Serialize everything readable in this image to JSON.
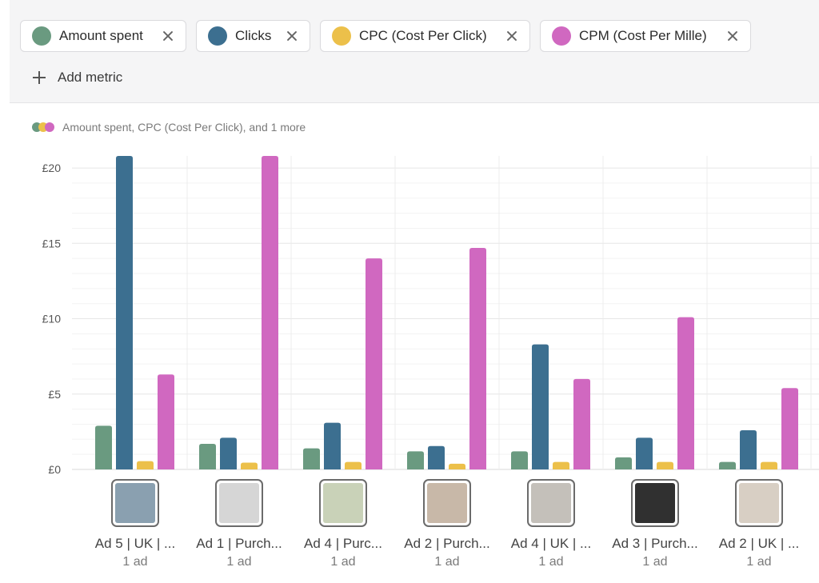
{
  "metrics": [
    {
      "label": "Amount spent",
      "color": "#6a9a80"
    },
    {
      "label": "Clicks",
      "color": "#3c6f90"
    },
    {
      "label": "CPC (Cost Per Click)",
      "color": "#ecc04a"
    },
    {
      "label": "CPM (Cost Per Mille)",
      "color": "#d068c0"
    }
  ],
  "add_metric_label": "Add metric",
  "legend_summary": "Amount spent, CPC (Cost Per Click), and 1 more",
  "chart_data": {
    "type": "bar",
    "title": "",
    "xlabel": "",
    "ylabel": "",
    "ylim": [
      0,
      20.8
    ],
    "yticks": [
      "£0",
      "£5",
      "£10",
      "£15",
      "£20"
    ],
    "ytick_values": [
      0,
      5,
      10,
      15,
      20
    ],
    "grid": true,
    "categories": [
      "Ad 5 | UK | ...",
      "Ad 1 | Purch...",
      "Ad 4 | Purc...",
      "Ad 2 | Purch...",
      "Ad 4 | UK | ...",
      "Ad 3 | Purch...",
      "Ad 2 | UK | ..."
    ],
    "category_sublabels": [
      "1 ad",
      "1 ad",
      "1 ad",
      "1 ad",
      "1 ad",
      "1 ad",
      "1 ad"
    ],
    "series": [
      {
        "name": "Amount spent",
        "color": "#6a9a80",
        "values": [
          2.9,
          1.7,
          1.4,
          1.2,
          1.2,
          0.8,
          0.5
        ]
      },
      {
        "name": "Clicks",
        "color": "#3c6f90",
        "values": [
          20.8,
          2.1,
          3.1,
          1.55,
          8.3,
          2.1,
          2.6
        ]
      },
      {
        "name": "CPC (Cost Per Click)",
        "color": "#ecc04a",
        "values": [
          0.55,
          0.45,
          0.5,
          0.38,
          0.5,
          0.5,
          0.5
        ]
      },
      {
        "name": "CPM (Cost Per Mille)",
        "color": "#d068c0",
        "values": [
          6.3,
          20.8,
          14.0,
          14.7,
          6.0,
          10.1,
          5.4
        ]
      }
    ]
  }
}
